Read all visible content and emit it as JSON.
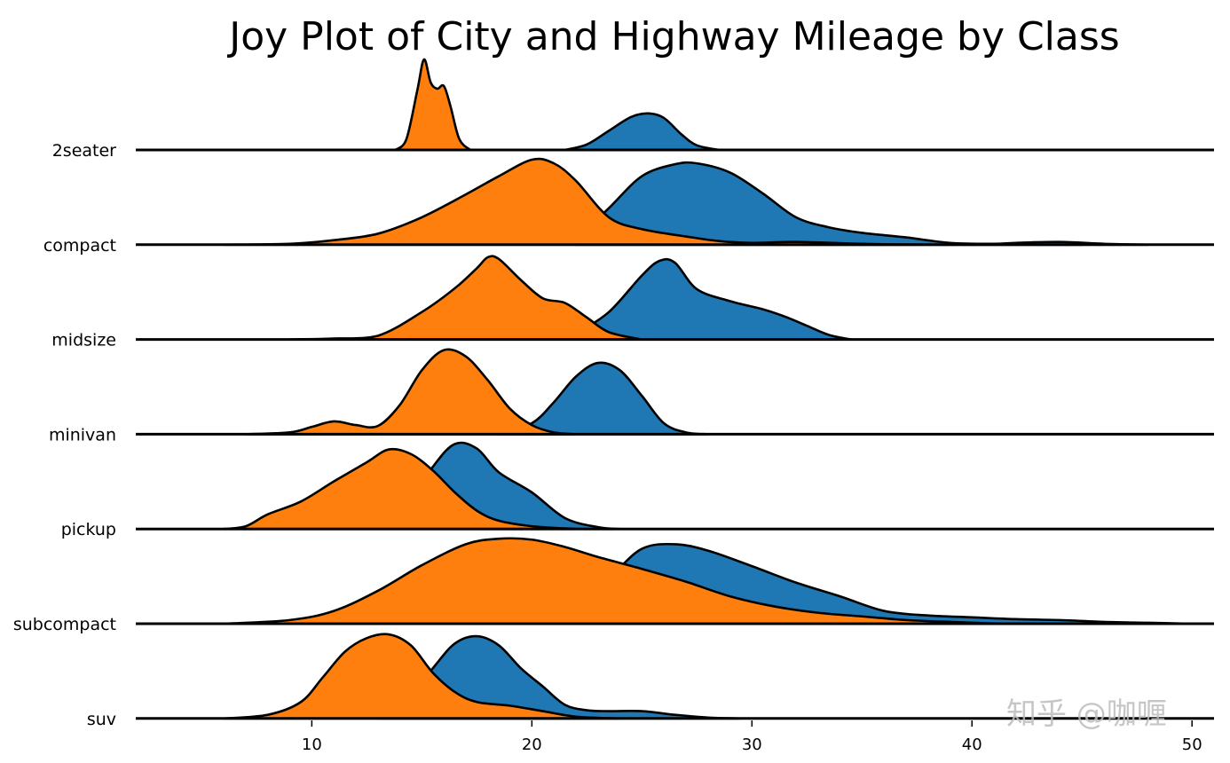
{
  "chart_data": {
    "type": "area",
    "subtype": "joyplot",
    "title": "Joy Plot of City and Highway Mileage by Class",
    "xlabel": "",
    "ylabel": "",
    "xlim": [
      2,
      51
    ],
    "xticks": [
      10,
      20,
      30,
      40,
      50
    ],
    "grid": false,
    "legend": "none",
    "colors": {
      "hwy": "#1f77b4",
      "cty": "#ff7f0e",
      "outline": "#000000"
    },
    "categories": [
      "2seater",
      "compact",
      "midsize",
      "minivan",
      "pickup",
      "subcompact",
      "suv"
    ],
    "series": [
      {
        "color": "#1f77b4",
        "rows": [
          [
            [
              21.5,
              0.0
            ],
            [
              22.5,
              0.06
            ],
            [
              23.5,
              0.21
            ],
            [
              24.5,
              0.36
            ],
            [
              25.3,
              0.4
            ],
            [
              26.0,
              0.35
            ],
            [
              26.8,
              0.17
            ],
            [
              27.5,
              0.05
            ],
            [
              28.5,
              0.0
            ]
          ],
          [
            [
              22.0,
              0.05
            ],
            [
              23.5,
              0.4
            ],
            [
              25.0,
              0.75
            ],
            [
              26.5,
              0.88
            ],
            [
              27.5,
              0.89
            ],
            [
              29.0,
              0.79
            ],
            [
              30.5,
              0.56
            ],
            [
              32.0,
              0.3
            ],
            [
              33.5,
              0.19
            ],
            [
              35.0,
              0.13
            ],
            [
              37.0,
              0.08
            ],
            [
              39.0,
              0.02
            ],
            [
              41.0,
              0.01
            ],
            [
              42.0,
              0.02
            ],
            [
              44.0,
              0.03
            ],
            [
              46.0,
              0.01
            ],
            [
              48.0,
              0.0
            ]
          ],
          [
            [
              22.0,
              0.06
            ],
            [
              23.5,
              0.3
            ],
            [
              25.0,
              0.7
            ],
            [
              25.8,
              0.86
            ],
            [
              26.5,
              0.84
            ],
            [
              27.5,
              0.55
            ],
            [
              29.0,
              0.42
            ],
            [
              30.5,
              0.33
            ],
            [
              31.5,
              0.25
            ],
            [
              32.5,
              0.15
            ],
            [
              33.5,
              0.05
            ],
            [
              34.5,
              0.0
            ]
          ],
          [
            [
              18.5,
              0.0
            ],
            [
              20.0,
              0.12
            ],
            [
              21.0,
              0.35
            ],
            [
              22.0,
              0.63
            ],
            [
              23.0,
              0.78
            ],
            [
              24.0,
              0.7
            ],
            [
              25.0,
              0.42
            ],
            [
              26.0,
              0.12
            ],
            [
              27.0,
              0.02
            ],
            [
              28.0,
              0.0
            ]
          ],
          [
            [
              13.0,
              0.1
            ],
            [
              14.5,
              0.3
            ],
            [
              15.5,
              0.68
            ],
            [
              16.5,
              0.93
            ],
            [
              17.5,
              0.88
            ],
            [
              18.5,
              0.62
            ],
            [
              20.0,
              0.4
            ],
            [
              21.5,
              0.12
            ],
            [
              23.0,
              0.02
            ],
            [
              24.0,
              0.0
            ]
          ],
          [
            [
              19.0,
              0.1
            ],
            [
              21.5,
              0.28
            ],
            [
              23.5,
              0.52
            ],
            [
              25.0,
              0.82
            ],
            [
              26.5,
              0.87
            ],
            [
              28.0,
              0.8
            ],
            [
              30.0,
              0.63
            ],
            [
              32.0,
              0.45
            ],
            [
              34.0,
              0.3
            ],
            [
              36.0,
              0.14
            ],
            [
              38.0,
              0.09
            ],
            [
              40.0,
              0.07
            ],
            [
              42.0,
              0.05
            ],
            [
              44.0,
              0.04
            ],
            [
              46.0,
              0.02
            ],
            [
              48.0,
              0.01
            ],
            [
              50.0,
              0.0
            ]
          ],
          [
            [
              13.0,
              0.0
            ],
            [
              14.0,
              0.1
            ],
            [
              15.5,
              0.55
            ],
            [
              16.5,
              0.82
            ],
            [
              17.5,
              0.9
            ],
            [
              18.5,
              0.8
            ],
            [
              19.5,
              0.55
            ],
            [
              20.5,
              0.35
            ],
            [
              21.5,
              0.15
            ],
            [
              22.5,
              0.09
            ],
            [
              23.5,
              0.08
            ],
            [
              25.0,
              0.08
            ],
            [
              26.5,
              0.04
            ],
            [
              28.0,
              0.01
            ],
            [
              29.5,
              0.0
            ]
          ]
        ]
      },
      {
        "color": "#ff7f0e",
        "rows": [
          [
            [
              13.8,
              0.0
            ],
            [
              14.3,
              0.12
            ],
            [
              14.8,
              0.66
            ],
            [
              15.1,
              0.99
            ],
            [
              15.4,
              0.74
            ],
            [
              15.7,
              0.67
            ],
            [
              16.0,
              0.7
            ],
            [
              16.3,
              0.48
            ],
            [
              16.7,
              0.12
            ],
            [
              17.2,
              0.0
            ]
          ],
          [
            [
              6.0,
              0.0
            ],
            [
              9.0,
              0.01
            ],
            [
              11.0,
              0.05
            ],
            [
              13.0,
              0.12
            ],
            [
              15.0,
              0.3
            ],
            [
              17.0,
              0.55
            ],
            [
              18.5,
              0.75
            ],
            [
              20.0,
              0.93
            ],
            [
              21.0,
              0.89
            ],
            [
              22.0,
              0.7
            ],
            [
              23.5,
              0.3
            ],
            [
              25.0,
              0.17
            ],
            [
              27.0,
              0.09
            ],
            [
              28.5,
              0.04
            ],
            [
              30.0,
              0.02
            ],
            [
              32.0,
              0.03
            ],
            [
              35.0,
              0.01
            ],
            [
              38.0,
              0.0
            ],
            [
              45.0,
              0.0
            ]
          ],
          [
            [
              9.0,
              0.0
            ],
            [
              11.0,
              0.01
            ],
            [
              13.0,
              0.04
            ],
            [
              15.0,
              0.3
            ],
            [
              16.5,
              0.56
            ],
            [
              17.5,
              0.78
            ],
            [
              18.0,
              0.9
            ],
            [
              18.5,
              0.88
            ],
            [
              19.5,
              0.65
            ],
            [
              20.5,
              0.45
            ],
            [
              21.5,
              0.4
            ],
            [
              22.5,
              0.24
            ],
            [
              23.5,
              0.08
            ],
            [
              25.0,
              0.0
            ]
          ],
          [
            [
              7.0,
              0.0
            ],
            [
              9.0,
              0.02
            ],
            [
              10.0,
              0.08
            ],
            [
              11.0,
              0.14
            ],
            [
              12.0,
              0.1
            ],
            [
              13.0,
              0.09
            ],
            [
              14.0,
              0.32
            ],
            [
              15.0,
              0.7
            ],
            [
              16.0,
              0.92
            ],
            [
              17.0,
              0.85
            ],
            [
              18.0,
              0.59
            ],
            [
              19.0,
              0.28
            ],
            [
              20.0,
              0.1
            ],
            [
              21.0,
              0.02
            ],
            [
              22.0,
              0.0
            ]
          ],
          [
            [
              6.0,
              0.0
            ],
            [
              7.0,
              0.03
            ],
            [
              8.0,
              0.16
            ],
            [
              9.5,
              0.3
            ],
            [
              11.0,
              0.52
            ],
            [
              12.5,
              0.73
            ],
            [
              13.5,
              0.87
            ],
            [
              14.5,
              0.82
            ],
            [
              15.5,
              0.64
            ],
            [
              16.5,
              0.4
            ],
            [
              17.5,
              0.2
            ],
            [
              18.5,
              0.09
            ],
            [
              20.0,
              0.03
            ],
            [
              22.0,
              0.0
            ]
          ],
          [
            [
              6.0,
              0.0
            ],
            [
              9.0,
              0.04
            ],
            [
              11.0,
              0.14
            ],
            [
              13.0,
              0.36
            ],
            [
              15.0,
              0.64
            ],
            [
              17.0,
              0.87
            ],
            [
              18.5,
              0.93
            ],
            [
              20.0,
              0.92
            ],
            [
              21.5,
              0.84
            ],
            [
              23.0,
              0.73
            ],
            [
              25.0,
              0.6
            ],
            [
              27.0,
              0.46
            ],
            [
              29.0,
              0.3
            ],
            [
              31.0,
              0.19
            ],
            [
              33.0,
              0.12
            ],
            [
              35.0,
              0.08
            ],
            [
              37.0,
              0.04
            ],
            [
              39.0,
              0.02
            ],
            [
              42.0,
              0.0
            ],
            [
              48.0,
              0.0
            ]
          ],
          [
            [
              6.0,
              0.0
            ],
            [
              8.0,
              0.04
            ],
            [
              9.5,
              0.18
            ],
            [
              10.5,
              0.45
            ],
            [
              11.5,
              0.73
            ],
            [
              12.5,
              0.88
            ],
            [
              13.5,
              0.92
            ],
            [
              14.5,
              0.8
            ],
            [
              15.5,
              0.5
            ],
            [
              16.5,
              0.29
            ],
            [
              17.5,
              0.18
            ],
            [
              19.0,
              0.14
            ],
            [
              20.5,
              0.08
            ],
            [
              22.0,
              0.02
            ],
            [
              24.0,
              0.0
            ]
          ]
        ]
      }
    ]
  },
  "watermark": "知乎 @咖喱"
}
